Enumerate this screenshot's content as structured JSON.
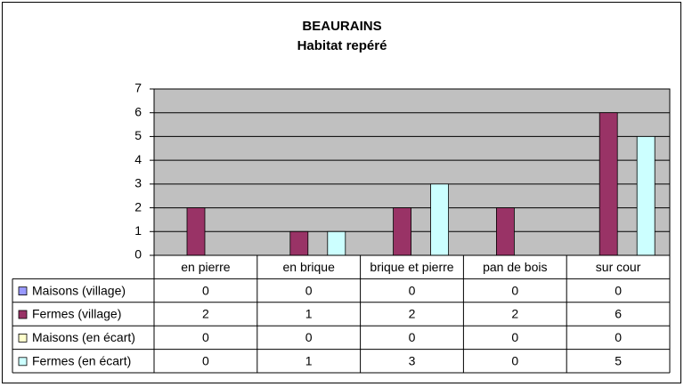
{
  "chart_data": {
    "type": "bar",
    "title": "BEAURAINS",
    "subtitle": "Habitat repéré",
    "categories": [
      "en pierre",
      "en brique",
      "brique et pierre",
      "pan de bois",
      "sur cour"
    ],
    "series": [
      {
        "name": "Maisons (village)",
        "color": "#9999ff",
        "values": [
          0,
          0,
          0,
          0,
          0
        ]
      },
      {
        "name": "Fermes (village)",
        "color": "#993366",
        "values": [
          2,
          1,
          2,
          2,
          6
        ]
      },
      {
        "name": "Maisons (en écart)",
        "color": "#ffffcc",
        "values": [
          0,
          0,
          0,
          0,
          0
        ]
      },
      {
        "name": "Fermes (en écart)",
        "color": "#ccffff",
        "values": [
          0,
          1,
          3,
          0,
          5
        ]
      }
    ],
    "ylim": [
      0,
      7
    ],
    "yticks": [
      0,
      1,
      2,
      3,
      4,
      5,
      6,
      7
    ],
    "grid": true,
    "plot_background": "#c0c0c0"
  }
}
